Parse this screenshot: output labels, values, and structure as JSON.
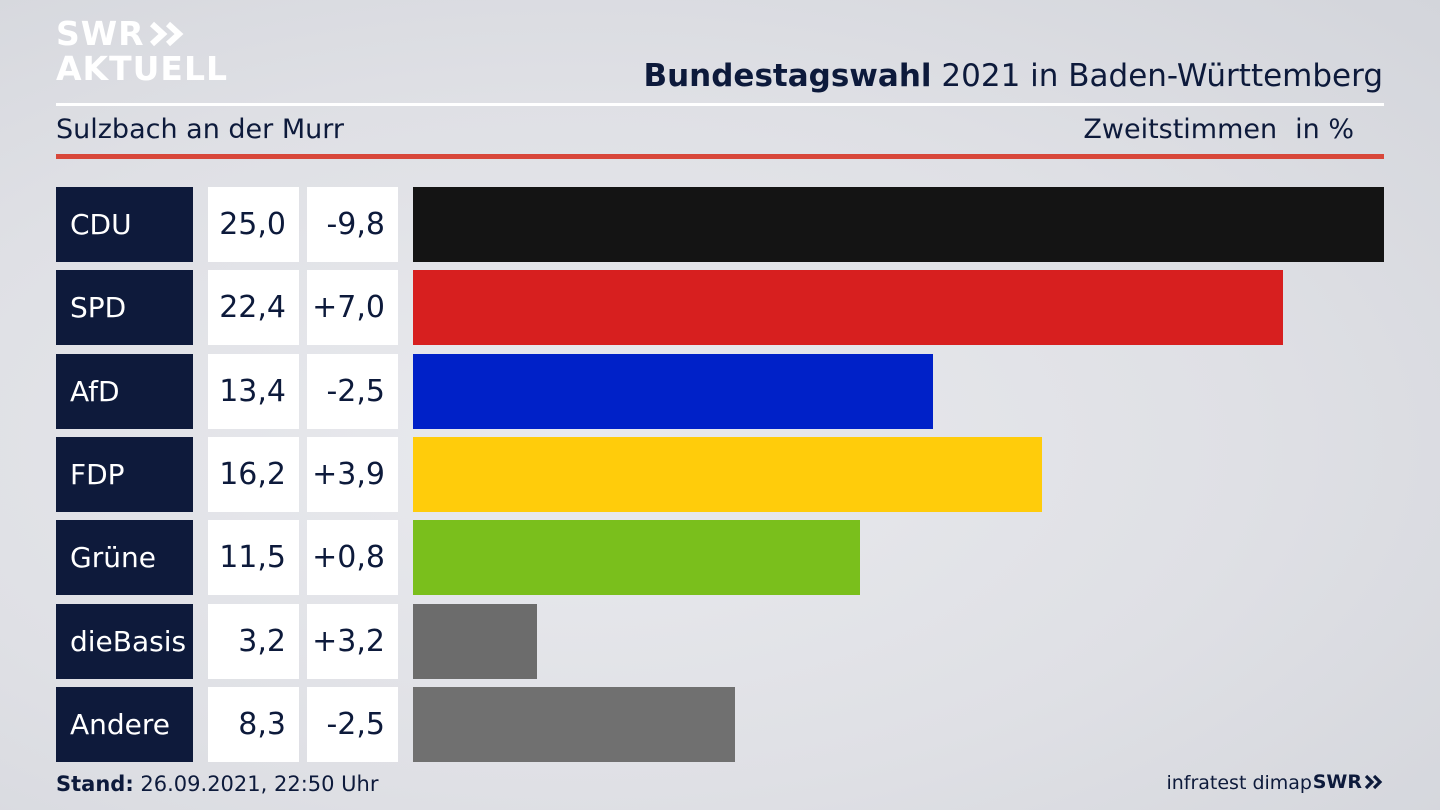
{
  "brand": {
    "line1": "SWR",
    "line2": "AKTUELL",
    "footer": "SWR"
  },
  "header": {
    "title_bold": "Bundestagswahl",
    "title_rest": " 2021 in Baden-Württemberg",
    "location": "Sulzbach an der Murr",
    "metric": "Zweitstimmen",
    "unit": "in %"
  },
  "footer": {
    "stand_label": "Stand:",
    "stand_value": " 26.09.2021, 22:50 Uhr",
    "source": "infratest dimap"
  },
  "colors": {
    "CDU": "#141414",
    "SPD": "#d71f1f",
    "AfD": "#0021c8",
    "FDP": "#ffcc0b",
    "Grüne": "#7abf1c",
    "dieBasis": "#6c6c6c",
    "Andere": "#707070"
  },
  "chart_data": {
    "type": "bar",
    "orientation": "horizontal",
    "categories": [
      "CDU",
      "SPD",
      "AfD",
      "FDP",
      "Grüne",
      "dieBasis",
      "Andere"
    ],
    "values": [
      25.0,
      22.4,
      13.4,
      16.2,
      11.5,
      3.2,
      8.3
    ],
    "value_labels": [
      "25,0",
      "22,4",
      "13,4",
      "16,2",
      "11,5",
      "3,2",
      "8,3"
    ],
    "changes": [
      -9.8,
      7.0,
      -2.5,
      3.9,
      0.8,
      3.2,
      -2.5
    ],
    "change_labels": [
      "-9,8",
      "+7,0",
      "-2,5",
      "+3,9",
      "+0,8",
      "+3,2",
      "-2,5"
    ],
    "xlim": [
      0,
      25.0
    ],
    "grid": false,
    "legend": "none"
  }
}
